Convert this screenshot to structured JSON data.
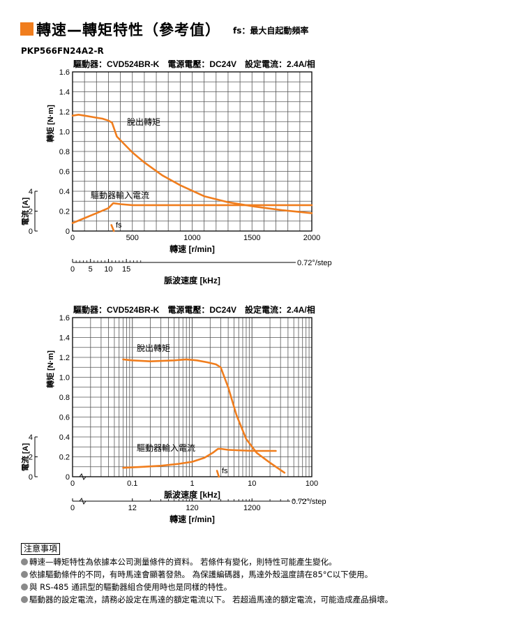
{
  "colors": {
    "accent": "#f07d1d",
    "grid": "#555555",
    "curve": "#f07d1d"
  },
  "header": {
    "title": "轉速—轉矩特性（參考值）",
    "fs_note": "fs：最大自起動頻率"
  },
  "model": "PKP566FN24A2-R",
  "chart_data": [
    {
      "type": "line",
      "subtitle": "驅動器：CVD524BR-K　電源電壓：DC24V　設定電流：2.4A/相",
      "ylabel": "轉矩 [N·m]",
      "ylabel2": "電流 [A]",
      "xlabel": "轉速 [r/min]",
      "xlabel2": "脈波速度 [kHz]",
      "xscale": "linear",
      "xlim": [
        0,
        2000
      ],
      "ylim": [
        0,
        1.6
      ],
      "y2lim": [
        0,
        4
      ],
      "xticks": [
        "0",
        "500",
        "1000",
        "1500",
        "2000"
      ],
      "yticks": [
        "0",
        "0.2",
        "0.4",
        "0.6",
        "0.8",
        "1.0",
        "1.2",
        "1.4",
        "1.6"
      ],
      "y2ticks": [
        "0",
        "2",
        "4"
      ],
      "x2ticks": [
        "0",
        "5",
        "10",
        "15"
      ],
      "x2_suffix": "0.72°/step",
      "grid": true,
      "annotations": {
        "torque": "脫出轉矩",
        "current": "驅動器輸入電流",
        "fs": "fs"
      },
      "series": [
        {
          "name": "脫出轉矩",
          "x": [
            0,
            50,
            100,
            150,
            200,
            250,
            300,
            330,
            370,
            500,
            600,
            750,
            900,
            1100,
            1300,
            1500,
            1750,
            2000
          ],
          "y": [
            1.16,
            1.17,
            1.16,
            1.15,
            1.14,
            1.13,
            1.11,
            1.09,
            0.95,
            0.79,
            0.69,
            0.56,
            0.46,
            0.35,
            0.29,
            0.25,
            0.21,
            0.18
          ]
        },
        {
          "name": "驅動器輸入電流",
          "x": [
            0,
            100,
            200,
            300,
            340,
            400,
            500,
            1000,
            1500,
            2000
          ],
          "y": [
            0.08,
            0.13,
            0.18,
            0.23,
            0.28,
            0.27,
            0.26,
            0.26,
            0.26,
            0.26
          ]
        },
        {
          "name": "fs",
          "x": [
            325,
            345
          ],
          "y": [
            0.06,
            0.0
          ]
        }
      ]
    },
    {
      "type": "line",
      "subtitle": "驅動器：CVD524BR-K　電源電壓：DC24V　設定電流：2.4A/相",
      "ylabel": "轉矩 [N·m]",
      "ylabel2": "電流 [A]",
      "xlabel": "脈波速度 [kHz]",
      "xlabel2": "轉速 [r/min]",
      "xscale": "log",
      "xlim": [
        0.01,
        100
      ],
      "ylim": [
        0,
        1.6
      ],
      "y2lim": [
        0,
        4
      ],
      "xticks": [
        "0",
        "0.1",
        "1",
        "10",
        "100"
      ],
      "yticks": [
        "0",
        "0.2",
        "0.4",
        "0.6",
        "0.8",
        "1.0",
        "1.2",
        "1.4",
        "1.6"
      ],
      "y2ticks": [
        "0",
        "2",
        "4"
      ],
      "x2ticks": [
        "0",
        "12",
        "120",
        "1200"
      ],
      "x2_suffix": "0.72°/step",
      "grid": true,
      "annotations": {
        "torque": "脫出轉矩",
        "current": "驅動器輸入電流",
        "fs": "fs"
      },
      "series": [
        {
          "name": "脫出轉矩",
          "x": [
            0.07,
            0.1,
            0.2,
            0.5,
            0.8,
            1.2,
            1.8,
            2.5,
            3.0,
            4.0,
            5.5,
            8.0,
            12.0,
            20.0,
            35.0
          ],
          "y": [
            1.18,
            1.17,
            1.16,
            1.17,
            1.18,
            1.17,
            1.15,
            1.13,
            1.1,
            0.9,
            0.62,
            0.38,
            0.24,
            0.14,
            0.04
          ]
        },
        {
          "name": "驅動器輸入電流",
          "x": [
            0.07,
            0.15,
            0.3,
            0.6,
            1.0,
            1.6,
            2.2,
            2.7,
            3.1,
            4.0,
            10.0,
            25.0
          ],
          "y": [
            0.09,
            0.1,
            0.11,
            0.13,
            0.15,
            0.19,
            0.24,
            0.28,
            0.28,
            0.27,
            0.26,
            0.26
          ]
        },
        {
          "name": "fs",
          "x": [
            2.6,
            2.8
          ],
          "y": [
            0.06,
            0.0
          ]
        }
      ]
    }
  ],
  "notes": {
    "title": "注意事項",
    "items": [
      "轉速—轉矩特性為依據本公司測量條件的資料。 若條件有變化，則特性可能產生變化。",
      "依據驅動條件的不同，有時馬達會顯著發熱。 為保護編碼器，馬達外殼溫度請在85°C以下使用。",
      "與 RS-485 通訊型的驅動器組合使用時也是同樣的特性。",
      "驅動器的設定電流，請務必設定在馬達的額定電流以下。 若超過馬達的額定電流，可能造成產品損壞。"
    ]
  }
}
